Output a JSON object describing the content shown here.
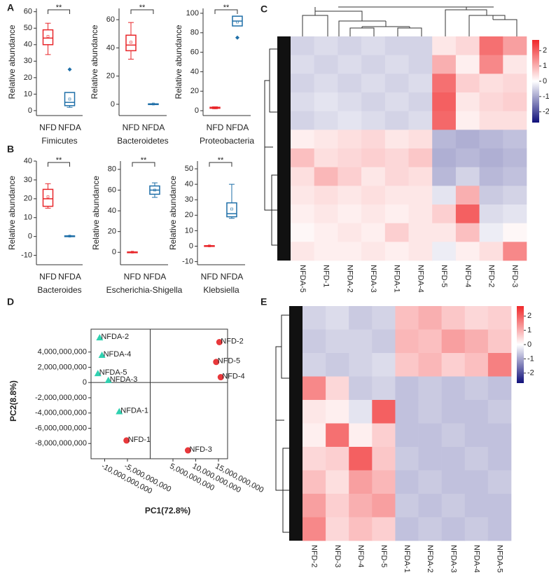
{
  "chart_data": [
    {
      "type": "box",
      "panel": "A",
      "ylabel": "Relative abundance",
      "xlabel": "Fimicutes",
      "categories": [
        "NFD",
        "NFDA"
      ],
      "colors": [
        "#e8262a",
        "#1f6fa8"
      ],
      "significance": "**",
      "boxes": [
        {
          "min": 34,
          "q1": 40,
          "median": 44,
          "q3": 49,
          "max": 53,
          "mean": 45,
          "outliers": []
        },
        {
          "min": 2,
          "q1": 3,
          "median": 5,
          "q3": 11,
          "max": 11,
          "mean": 7,
          "outliers": [
            25
          ]
        }
      ],
      "ylim": [
        -3,
        62
      ],
      "yticks": [
        0,
        10,
        20,
        30,
        40,
        50,
        60
      ]
    },
    {
      "type": "box",
      "ylabel": "Relative abundance",
      "xlabel": "Bacteroidetes",
      "categories": [
        "NFD",
        "NFDA"
      ],
      "colors": [
        "#e8262a",
        "#1f6fa8"
      ],
      "significance": "**",
      "boxes": [
        {
          "min": 32,
          "q1": 38,
          "median": 42,
          "q3": 49,
          "max": 58,
          "mean": 44,
          "outliers": []
        },
        {
          "min": 0,
          "q1": 0.1,
          "median": 0.2,
          "q3": 0.3,
          "max": 0.4,
          "mean": 0.2,
          "outliers": []
        }
      ],
      "ylim": [
        -8,
        68
      ],
      "yticks": [
        0,
        20,
        40,
        60
      ]
    },
    {
      "type": "box",
      "ylabel": "Relative abundance",
      "xlabel": "Proteobacteria",
      "categories": [
        "NFD",
        "NFDA"
      ],
      "colors": [
        "#e8262a",
        "#1f6fa8"
      ],
      "significance": "**",
      "boxes": [
        {
          "min": 2,
          "q1": 2.5,
          "median": 3,
          "q3": 3.5,
          "max": 4,
          "mean": 3,
          "outliers": []
        },
        {
          "min": 87,
          "q1": 87,
          "median": 92,
          "q3": 97,
          "max": 97,
          "mean": 91,
          "outliers": [
            75
          ]
        }
      ],
      "ylim": [
        -5,
        105
      ],
      "yticks": [
        0,
        20,
        40,
        60,
        80,
        100
      ]
    },
    {
      "type": "box",
      "panel": "B",
      "ylabel": "Relative abundance",
      "xlabel": "Bacteroides",
      "categories": [
        "NFD",
        "NFDA"
      ],
      "colors": [
        "#e8262a",
        "#1f6fa8"
      ],
      "significance": "**",
      "boxes": [
        {
          "min": 15,
          "q1": 16,
          "median": 20,
          "q3": 25,
          "max": 28,
          "mean": 21,
          "outliers": []
        },
        {
          "min": 0,
          "q1": 0.1,
          "median": 0.2,
          "q3": 0.3,
          "max": 0.4,
          "mean": 0.2,
          "outliers": []
        }
      ],
      "ylim": [
        -15,
        40
      ],
      "yticks": [
        -10,
        0,
        10,
        20,
        30,
        40
      ]
    },
    {
      "type": "box",
      "ylabel": "Relative abundance",
      "xlabel": "Escherichia-Shigella",
      "categories": [
        "NFD",
        "NFDA"
      ],
      "colors": [
        "#e8262a",
        "#1f6fa8"
      ],
      "significance": "**",
      "boxes": [
        {
          "min": 0,
          "q1": 0.1,
          "median": 0.2,
          "q3": 0.3,
          "max": 0.5,
          "mean": 0.2,
          "outliers": []
        },
        {
          "min": 53,
          "q1": 56,
          "median": 60,
          "q3": 64,
          "max": 67,
          "mean": 60,
          "outliers": []
        }
      ],
      "ylim": [
        -12,
        88
      ],
      "yticks": [
        0,
        20,
        40,
        60,
        80
      ]
    },
    {
      "type": "box",
      "ylabel": "Relative abundance",
      "xlabel": "Klebsiella",
      "categories": [
        "NFD",
        "NFDA"
      ],
      "colors": [
        "#e8262a",
        "#1f6fa8"
      ],
      "significance": "**",
      "boxes": [
        {
          "min": 0,
          "q1": 0.1,
          "median": 0.2,
          "q3": 0.3,
          "max": 0.4,
          "mean": 0.2,
          "outliers": []
        },
        {
          "min": 18,
          "q1": 19,
          "median": 21,
          "q3": 28,
          "max": 40,
          "mean": 24,
          "outliers": []
        }
      ],
      "ylim": [
        -12,
        55
      ],
      "yticks": [
        -10,
        0,
        10,
        20,
        30,
        40,
        50
      ]
    },
    {
      "type": "heatmap",
      "panel": "C",
      "columns": [
        "NFDA-5",
        "NFD-1",
        "NFDA-2",
        "NFDA-3",
        "NFDA-1",
        "NFDA-4",
        "NFD-5",
        "NFD-4",
        "NFD-2",
        "NFD-3"
      ],
      "zlim": [
        -2.7,
        2.7
      ],
      "zticks": [
        2,
        1,
        0,
        -1,
        -2
      ],
      "low_color": "#10107a",
      "mid_color": "#ffffff",
      "high_color": "#f0282a",
      "z": [
        [
          -0.5,
          -0.4,
          -0.5,
          -0.4,
          -0.5,
          -0.5,
          0.3,
          0.5,
          1.8,
          1.2
        ],
        [
          -0.4,
          -0.5,
          -0.4,
          -0.5,
          -0.4,
          -0.5,
          1.0,
          0.2,
          1.5,
          0.3
        ],
        [
          -0.5,
          -0.4,
          -0.5,
          -0.4,
          -0.5,
          -0.4,
          1.8,
          0.6,
          0.4,
          0.5
        ],
        [
          -0.4,
          -0.3,
          -0.4,
          -0.5,
          -0.4,
          -0.5,
          2.0,
          0.3,
          0.5,
          0.6
        ],
        [
          -0.5,
          -0.4,
          -0.3,
          -0.4,
          -0.5,
          -0.4,
          1.9,
          0.2,
          0.4,
          0.4
        ],
        [
          0.2,
          0.3,
          0.4,
          0.5,
          0.3,
          0.4,
          -0.8,
          -0.9,
          -0.8,
          -0.7
        ],
        [
          0.8,
          0.4,
          0.5,
          0.6,
          0.5,
          0.7,
          -0.9,
          -0.8,
          -0.9,
          -0.8
        ],
        [
          0.4,
          0.9,
          0.6,
          0.3,
          0.5,
          0.4,
          -0.8,
          -0.5,
          -0.8,
          -0.7
        ],
        [
          0.3,
          0.4,
          0.3,
          0.4,
          0.3,
          0.3,
          -0.3,
          1.0,
          -0.6,
          -0.5
        ],
        [
          0.2,
          0.3,
          0.2,
          0.3,
          0.2,
          0.3,
          0.6,
          2.0,
          -0.4,
          -0.3
        ],
        [
          0.1,
          0.2,
          0.3,
          0.2,
          0.6,
          0.3,
          0.3,
          0.8,
          -0.2,
          0.1
        ],
        [
          0.3,
          0.2,
          0.2,
          0.3,
          0.2,
          0.3,
          -0.2,
          0.2,
          0.4,
          1.5
        ]
      ]
    },
    {
      "type": "scatter",
      "panel": "D",
      "xlabel": "PC1(72.8%)",
      "ylabel": "PC2(8.8%)",
      "xlim": [
        -13000000000,
        17000000000
      ],
      "ylim": [
        -10000000000,
        7000000000
      ],
      "xticks": [
        {
          "value": -10000000000,
          "label": "-10,000,000,000"
        },
        {
          "value": -5000000000,
          "label": "-5,000,000,000"
        },
        {
          "value": 5000000000,
          "label": "5,000,000,000"
        },
        {
          "value": 10000000000,
          "label": "10,000,000,000"
        },
        {
          "value": 15000000000,
          "label": "15,000,000,000"
        }
      ],
      "yticks": [
        {
          "value": 4000000000,
          "label": "4,000,000,000"
        },
        {
          "value": 2000000000,
          "label": "2,000,000,000"
        },
        0,
        {
          "value": -2000000000,
          "label": "-2,000,000,000"
        },
        {
          "value": -4000000000,
          "label": "-4,000,000,000"
        },
        {
          "value": -6000000000,
          "label": "-6,000,000,000"
        },
        {
          "value": -8000000000,
          "label": "-8,000,000,000"
        }
      ],
      "series": [
        {
          "color": "#2fd1b0",
          "marker": "triangle",
          "labels": [
            "NFDA-2",
            "NFDA-4",
            "NFDA-5",
            "NFDA-3",
            "NFDA-1"
          ],
          "x": [
            -11100000000,
            -10600000000,
            -11500000000,
            -9200000000,
            -6800000000
          ],
          "y": [
            5900000000,
            3600000000,
            1200000000,
            300000000,
            -3800000000
          ]
        },
        {
          "color": "#e8383b",
          "marker": "circle",
          "labels": [
            "NFD-1",
            "NFD-3",
            "NFD-2",
            "NFD-5",
            "NFD-4"
          ],
          "x": [
            -5200000000,
            8300000000,
            15200000000,
            14500000000,
            15500000000
          ],
          "y": [
            -7600000000,
            -8900000000,
            5300000000,
            2700000000,
            700000000
          ]
        }
      ]
    },
    {
      "type": "heatmap",
      "panel": "E",
      "columns": [
        "NFD-2",
        "NFD-3",
        "NFD-4",
        "NFD-5",
        "NFDA-1",
        "NFDA-2",
        "NFDA-3",
        "NFDA-4",
        "NFDA-5"
      ],
      "zlim": [
        -2.7,
        2.7
      ],
      "zticks": [
        2,
        1,
        0,
        -1,
        -2
      ],
      "low_color": "#10107a",
      "mid_color": "#ffffff",
      "high_color": "#f0282a",
      "z": [
        [
          -0.5,
          -0.4,
          -0.6,
          -0.5,
          0.8,
          1.0,
          0.7,
          0.5,
          0.6
        ],
        [
          -0.6,
          -0.5,
          -0.5,
          -0.6,
          0.9,
          0.8,
          1.2,
          1.0,
          0.7
        ],
        [
          -0.5,
          -0.6,
          -0.5,
          -0.4,
          0.7,
          0.9,
          0.6,
          0.8,
          1.6
        ],
        [
          1.5,
          0.5,
          -0.6,
          -0.5,
          -0.7,
          -0.6,
          -0.7,
          -0.6,
          -0.7
        ],
        [
          0.3,
          0.2,
          -0.3,
          2.0,
          -0.7,
          -0.6,
          -0.7,
          -0.7,
          -0.6
        ],
        [
          0.2,
          1.8,
          0.2,
          0.6,
          -0.7,
          -0.7,
          -0.6,
          -0.7,
          -0.7
        ],
        [
          0.5,
          0.6,
          2.0,
          0.7,
          -0.6,
          -0.7,
          -0.7,
          -0.6,
          -0.7
        ],
        [
          0.8,
          0.4,
          1.2,
          0.9,
          -0.7,
          -0.6,
          -0.7,
          -0.7,
          -0.6
        ],
        [
          1.2,
          0.6,
          1.0,
          1.2,
          -0.6,
          -0.7,
          -0.6,
          -0.7,
          -0.7
        ],
        [
          1.5,
          0.5,
          0.8,
          0.6,
          -0.7,
          -0.6,
          -0.7,
          -0.6,
          -0.7
        ]
      ]
    }
  ]
}
